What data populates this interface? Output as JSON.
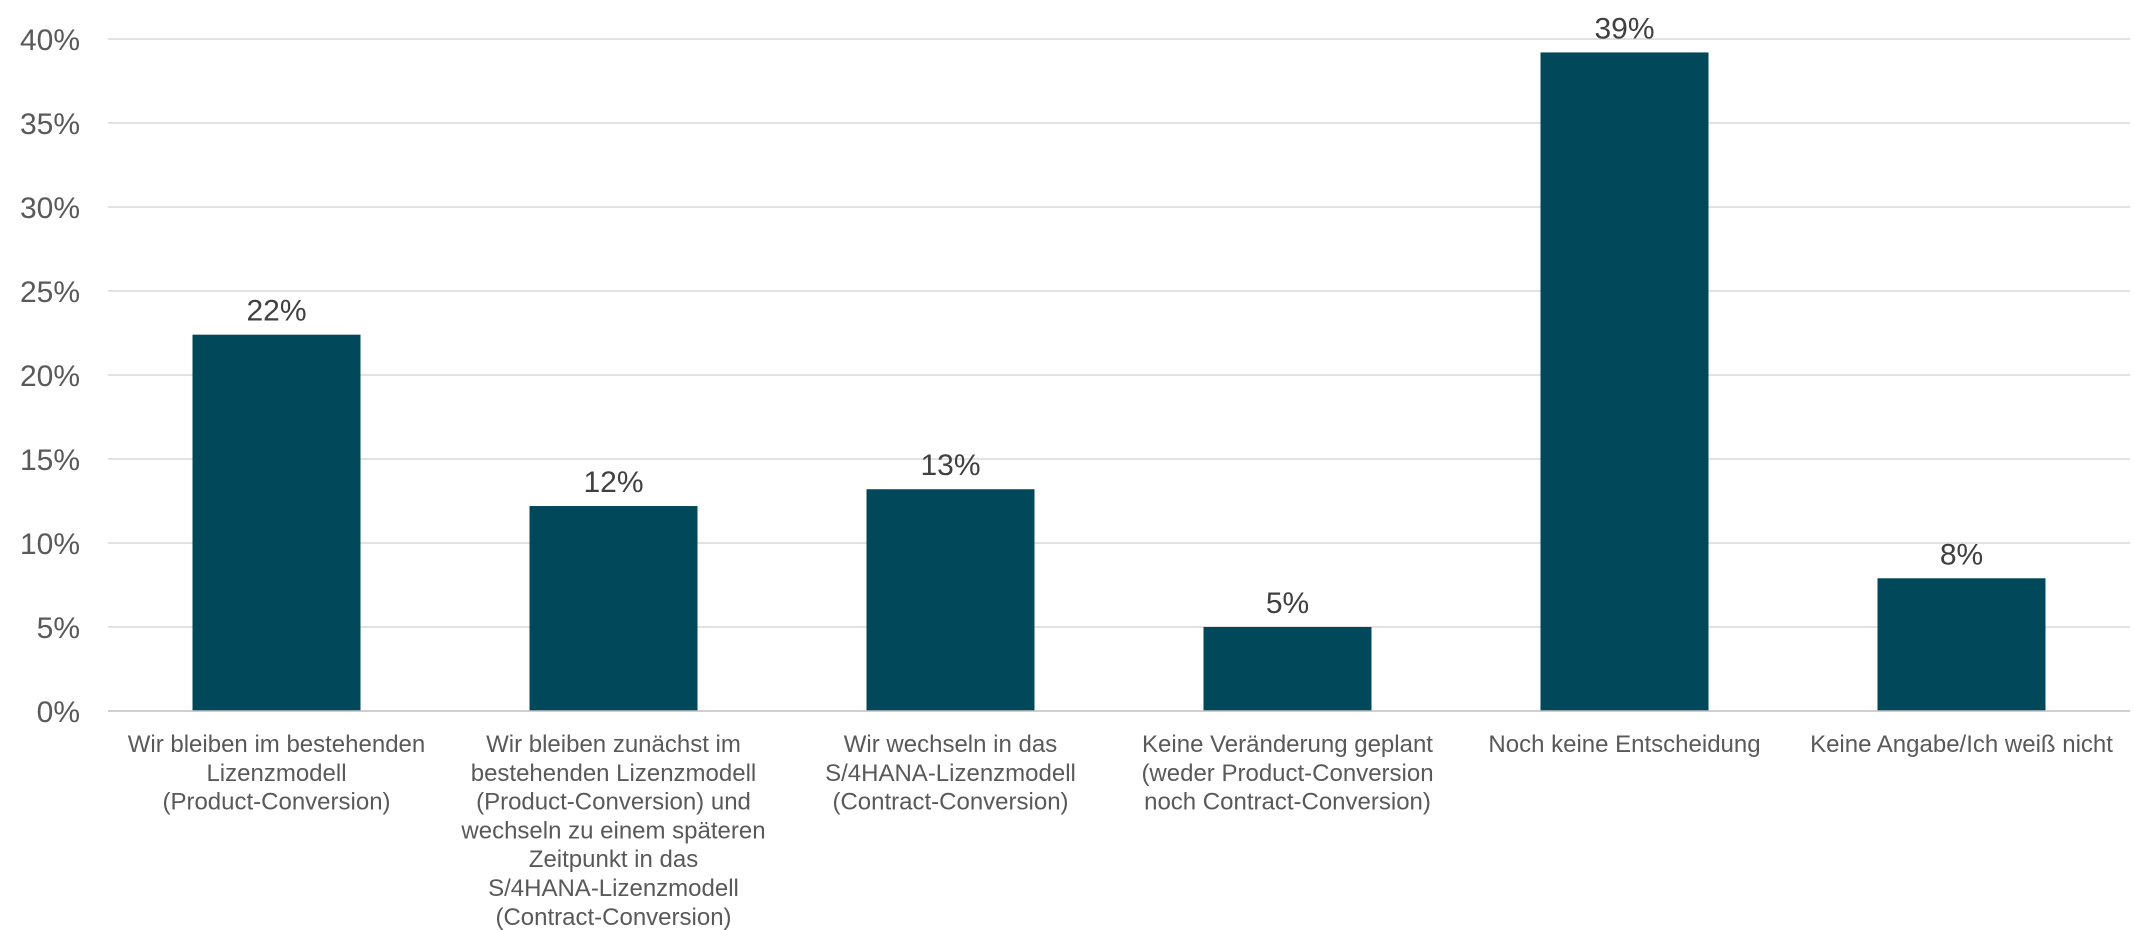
{
  "chart_data": {
    "type": "bar",
    "title": "",
    "xlabel": "",
    "ylabel": "",
    "ylim": [
      0,
      40
    ],
    "yticks": [
      0,
      5,
      10,
      15,
      20,
      25,
      30,
      35,
      40
    ],
    "ytick_labels": [
      "0%",
      "5%",
      "10%",
      "15%",
      "20%",
      "25%",
      "30%",
      "35%",
      "40%"
    ],
    "grid": true,
    "legend": "none",
    "bar_color": "#00485A",
    "categories": [
      "Wir bleiben im bestehenden Lizenzmodell (Product-Conversion)",
      "Wir bleiben zunächst im bestehenden Lizenzmodell (Product-Conversion) und wechseln zu einem späteren Zeitpunkt in das S/4HANA-Lizenzmodell (Contract-Conversion)",
      "Wir wechseln in das S/4HANA-Lizenzmodell (Contract-Conversion)",
      "Keine Veränderung geplant (weder Product-Conversion noch Contract-Conversion)",
      "Noch keine Entscheidung",
      "Keine Angabe/Ich weiß nicht"
    ],
    "category_lines": [
      [
        "Wir bleiben im bestehenden",
        "Lizenzmodell",
        "(Product-Conversion)"
      ],
      [
        "Wir bleiben zunächst im",
        "bestehenden Lizenzmodell",
        "(Product-Conversion) und",
        "wechseln zu einem späteren",
        "Zeitpunkt in das",
        "S/4HANA-Lizenzmodell",
        "(Contract-Conversion)"
      ],
      [
        "Wir wechseln in das",
        "S/4HANA-Lizenzmodell",
        "(Contract-Conversion)"
      ],
      [
        "Keine Veränderung geplant",
        "(weder Product-Conversion",
        "noch Contract-Conversion)"
      ],
      [
        "Noch keine Entscheidung"
      ],
      [
        "Keine Angabe/Ich weiß nicht"
      ]
    ],
    "values": [
      22.4,
      12.2,
      13.2,
      5.0,
      39.2,
      7.9
    ],
    "data_labels": [
      "22%",
      "12%",
      "13%",
      "5%",
      "39%",
      "8%"
    ]
  }
}
